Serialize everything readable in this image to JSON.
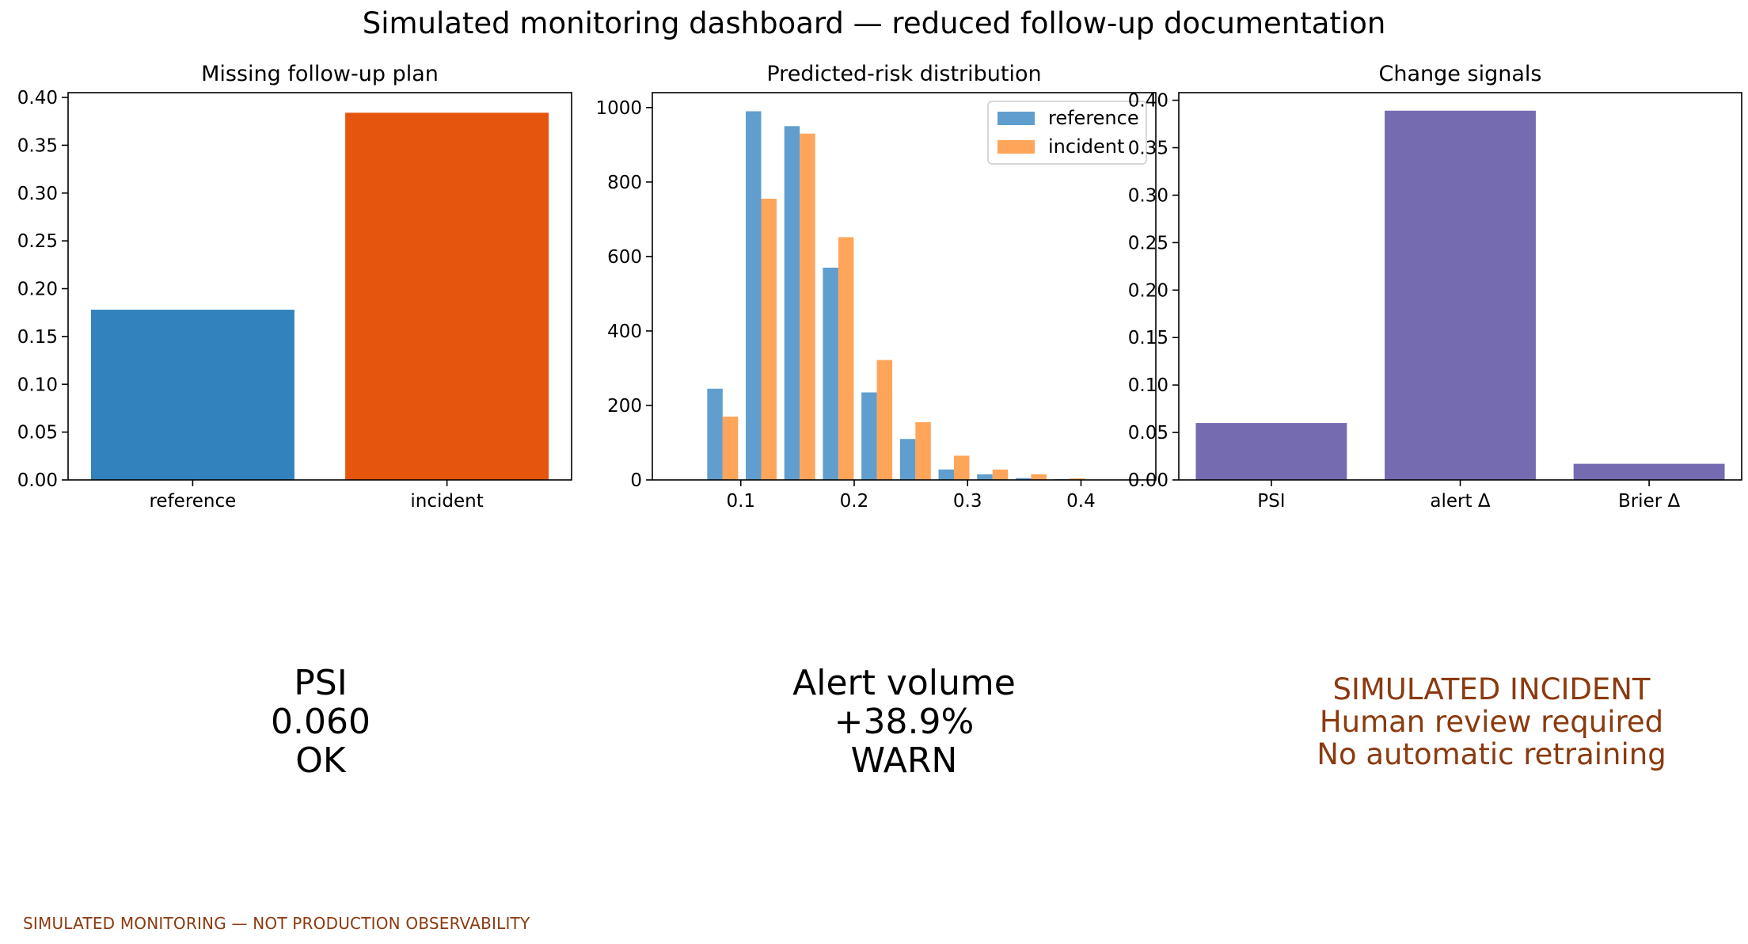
{
  "title": "Simulated monitoring dashboard — reduced follow-up documentation",
  "colors": {
    "reference_bar": "#3182bd",
    "incident_bar": "#e6550d",
    "hist_reference": "#5f9ecf",
    "hist_incident": "#ffa55a",
    "signals": "#756bb1",
    "warning_text": "#8b3a0f"
  },
  "chart_data": [
    {
      "type": "bar",
      "title": "Missing follow-up plan",
      "categories": [
        "reference",
        "incident"
      ],
      "values": [
        0.178,
        0.384
      ],
      "ylim": [
        0,
        0.405
      ],
      "yticks": [
        0.0,
        0.05,
        0.1,
        0.15,
        0.2,
        0.25,
        0.3,
        0.35,
        0.4
      ],
      "ytick_labels": [
        "0.00",
        "0.05",
        "0.10",
        "0.15",
        "0.20",
        "0.25",
        "0.30",
        "0.35",
        "0.40"
      ],
      "grid": false
    },
    {
      "type": "bar",
      "subtype": "histogram",
      "title": "Predicted-risk distribution",
      "bin_edges": [
        0.067,
        0.101,
        0.135,
        0.169,
        0.203,
        0.237,
        0.271,
        0.305,
        0.339,
        0.373,
        0.407,
        0.441,
        0.475
      ],
      "series": [
        {
          "name": "reference",
          "values": [
            245,
            990,
            950,
            570,
            235,
            110,
            28,
            15,
            5,
            2,
            1,
            0
          ]
        },
        {
          "name": "incident",
          "values": [
            170,
            755,
            930,
            652,
            322,
            155,
            65,
            28,
            15,
            4,
            1,
            0
          ]
        }
      ],
      "xlim": [
        0.022,
        0.466
      ],
      "xticks": [
        0.1,
        0.2,
        0.3,
        0.4
      ],
      "xtick_labels": [
        "0.1",
        "0.2",
        "0.3",
        "0.4"
      ],
      "ylim": [
        0,
        1040
      ],
      "yticks": [
        0,
        200,
        400,
        600,
        800,
        1000
      ],
      "ytick_labels": [
        "0",
        "200",
        "400",
        "600",
        "800",
        "1000"
      ],
      "legend_position": "top-right",
      "grid": false
    },
    {
      "type": "bar",
      "title": "Change signals",
      "categories": [
        "PSI",
        "alert Δ",
        "Brier Δ"
      ],
      "values": [
        0.06,
        0.389,
        0.017
      ],
      "ylim": [
        0,
        0.408
      ],
      "yticks": [
        0.0,
        0.05,
        0.1,
        0.15,
        0.2,
        0.25,
        0.3,
        0.35,
        0.4
      ],
      "ytick_labels": [
        "0.00",
        "0.05",
        "0.10",
        "0.15",
        "0.20",
        "0.25",
        "0.30",
        "0.35",
        "0.40"
      ],
      "grid": false
    }
  ],
  "summary": {
    "psi": {
      "label": "PSI",
      "value": "0.060",
      "status": "OK"
    },
    "alerts": {
      "label": "Alert volume",
      "value": "+38.9%",
      "status": "WARN"
    },
    "incident": {
      "line1": "SIMULATED INCIDENT",
      "line2": "Human review required",
      "line3": "No automatic retraining"
    }
  },
  "footer": "SIMULATED MONITORING — NOT PRODUCTION OBSERVABILITY"
}
